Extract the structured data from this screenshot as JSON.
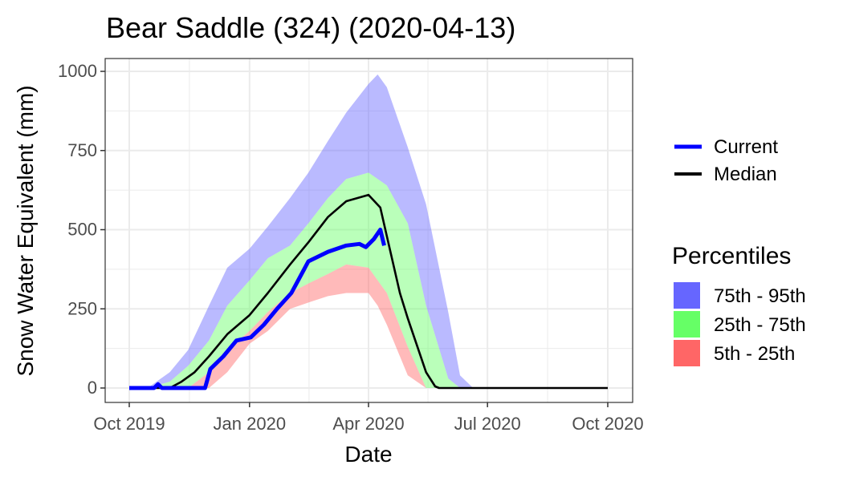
{
  "chart_data": {
    "type": "area",
    "title": "Bear Saddle (324) (2020-04-13)",
    "xlabel": "Date",
    "ylabel": "Snow Water Equivalent (mm)",
    "xlim": [
      "2019-10-01",
      "2020-10-01"
    ],
    "ylim": [
      0,
      1000
    ],
    "x_ticks": [
      "2019-10-01",
      "2020-01-01",
      "2020-04-01",
      "2020-07-01",
      "2020-10-01"
    ],
    "x_tick_labels": [
      "Oct 2019",
      "Jan 2020",
      "Apr 2020",
      "Jul 2020",
      "Oct 2020"
    ],
    "y_ticks": [
      0,
      250,
      500,
      750,
      1000
    ],
    "y_tick_labels": [
      "0",
      "250",
      "500",
      "750",
      "1000"
    ],
    "grid": true,
    "legend_placement": "right",
    "colors": {
      "p75_95": "#6666ff",
      "p25_75": "#66ff66",
      "p5_25": "#ff6666",
      "current": "#0000ff",
      "median": "#000000",
      "panel_border": "#333333",
      "grid": "#ebebeb"
    },
    "percentile_bands": {
      "x": [
        "2019-10-01",
        "2019-10-15",
        "2019-11-01",
        "2019-11-15",
        "2019-12-01",
        "2019-12-15",
        "2020-01-01",
        "2020-01-15",
        "2020-02-01",
        "2020-02-15",
        "2020-03-01",
        "2020-03-15",
        "2020-04-01",
        "2020-04-08",
        "2020-04-15",
        "2020-05-01",
        "2020-05-15",
        "2020-06-01",
        "2020-06-10",
        "2020-06-20",
        "2020-07-01",
        "2020-10-01"
      ],
      "p5": [
        0,
        0,
        0,
        0,
        0,
        50,
        140,
        180,
        250,
        270,
        290,
        300,
        300,
        260,
        200,
        40,
        0,
        0,
        0,
        0,
        0,
        0
      ],
      "p25": [
        0,
        0,
        0,
        0,
        50,
        120,
        180,
        240,
        300,
        330,
        360,
        390,
        380,
        340,
        300,
        130,
        0,
        0,
        0,
        0,
        0,
        0
      ],
      "p75": [
        0,
        0,
        20,
        70,
        150,
        260,
        340,
        410,
        450,
        520,
        600,
        660,
        680,
        660,
        640,
        520,
        260,
        30,
        0,
        0,
        0,
        0
      ],
      "p95": [
        0,
        0,
        50,
        120,
        260,
        380,
        440,
        510,
        600,
        680,
        780,
        870,
        960,
        990,
        950,
        760,
        580,
        240,
        40,
        0,
        0,
        0
      ]
    },
    "series": [
      {
        "name": "Current",
        "x": [
          "2019-10-01",
          "2019-10-20",
          "2019-10-23",
          "2019-10-26",
          "2019-11-15",
          "2019-11-28",
          "2019-12-02",
          "2019-12-12",
          "2019-12-22",
          "2020-01-02",
          "2020-01-12",
          "2020-01-22",
          "2020-02-02",
          "2020-02-15",
          "2020-03-01",
          "2020-03-15",
          "2020-03-25",
          "2020-03-30",
          "2020-04-05",
          "2020-04-10",
          "2020-04-13"
        ],
        "values": [
          0,
          0,
          12,
          0,
          0,
          0,
          60,
          100,
          150,
          160,
          200,
          250,
          300,
          400,
          430,
          450,
          455,
          445,
          470,
          500,
          450
        ]
      },
      {
        "name": "Median",
        "x": [
          "2019-10-01",
          "2019-10-20",
          "2019-11-01",
          "2019-11-10",
          "2019-11-20",
          "2019-12-01",
          "2019-12-15",
          "2020-01-01",
          "2020-01-15",
          "2020-02-01",
          "2020-02-15",
          "2020-03-01",
          "2020-03-15",
          "2020-04-01",
          "2020-04-10",
          "2020-04-15",
          "2020-04-25",
          "2020-05-01",
          "2020-05-15",
          "2020-05-22",
          "2020-05-25",
          "2020-10-01"
        ],
        "values": [
          0,
          0,
          0,
          20,
          50,
          100,
          170,
          230,
          300,
          390,
          460,
          540,
          590,
          610,
          570,
          480,
          300,
          220,
          50,
          5,
          0,
          0
        ]
      }
    ],
    "legend": {
      "lines": [
        "Current",
        "Median"
      ],
      "percentiles_title": "Percentiles",
      "percentiles": [
        "75th - 95th",
        "25th - 75th",
        "5th - 25th"
      ]
    }
  }
}
